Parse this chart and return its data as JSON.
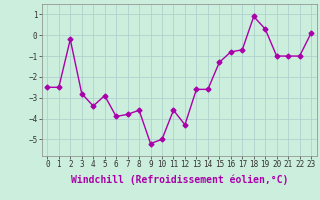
{
  "x": [
    0,
    1,
    2,
    3,
    4,
    5,
    6,
    7,
    8,
    9,
    10,
    11,
    12,
    13,
    14,
    15,
    16,
    17,
    18,
    19,
    20,
    21,
    22,
    23
  ],
  "y": [
    -2.5,
    -2.5,
    -0.2,
    -2.8,
    -3.4,
    -2.9,
    -3.9,
    -3.8,
    -3.6,
    -5.2,
    -5.0,
    -3.6,
    -4.3,
    -2.6,
    -2.6,
    -1.3,
    -0.8,
    -0.7,
    0.9,
    0.3,
    -1.0,
    -1.0,
    -1.0,
    0.1
  ],
  "line_color": "#aa00aa",
  "marker": "D",
  "markersize": 2.5,
  "bg_color": "#cceedd",
  "grid_color": "#aacccc",
  "xlabel": "Windchill (Refroidissement éolien,°C)",
  "ylabel": "",
  "ylim": [
    -5.8,
    1.5
  ],
  "xlim": [
    -0.5,
    23.5
  ],
  "yticks": [
    -5,
    -4,
    -3,
    -2,
    -1,
    0,
    1
  ],
  "xtick_labels": [
    "0",
    "1",
    "2",
    "3",
    "4",
    "5",
    "6",
    "7",
    "8",
    "9",
    "10",
    "11",
    "12",
    "13",
    "14",
    "15",
    "16",
    "17",
    "18",
    "19",
    "20",
    "21",
    "22",
    "23"
  ],
  "tick_fontsize": 5.5,
  "xlabel_fontsize": 7.0
}
